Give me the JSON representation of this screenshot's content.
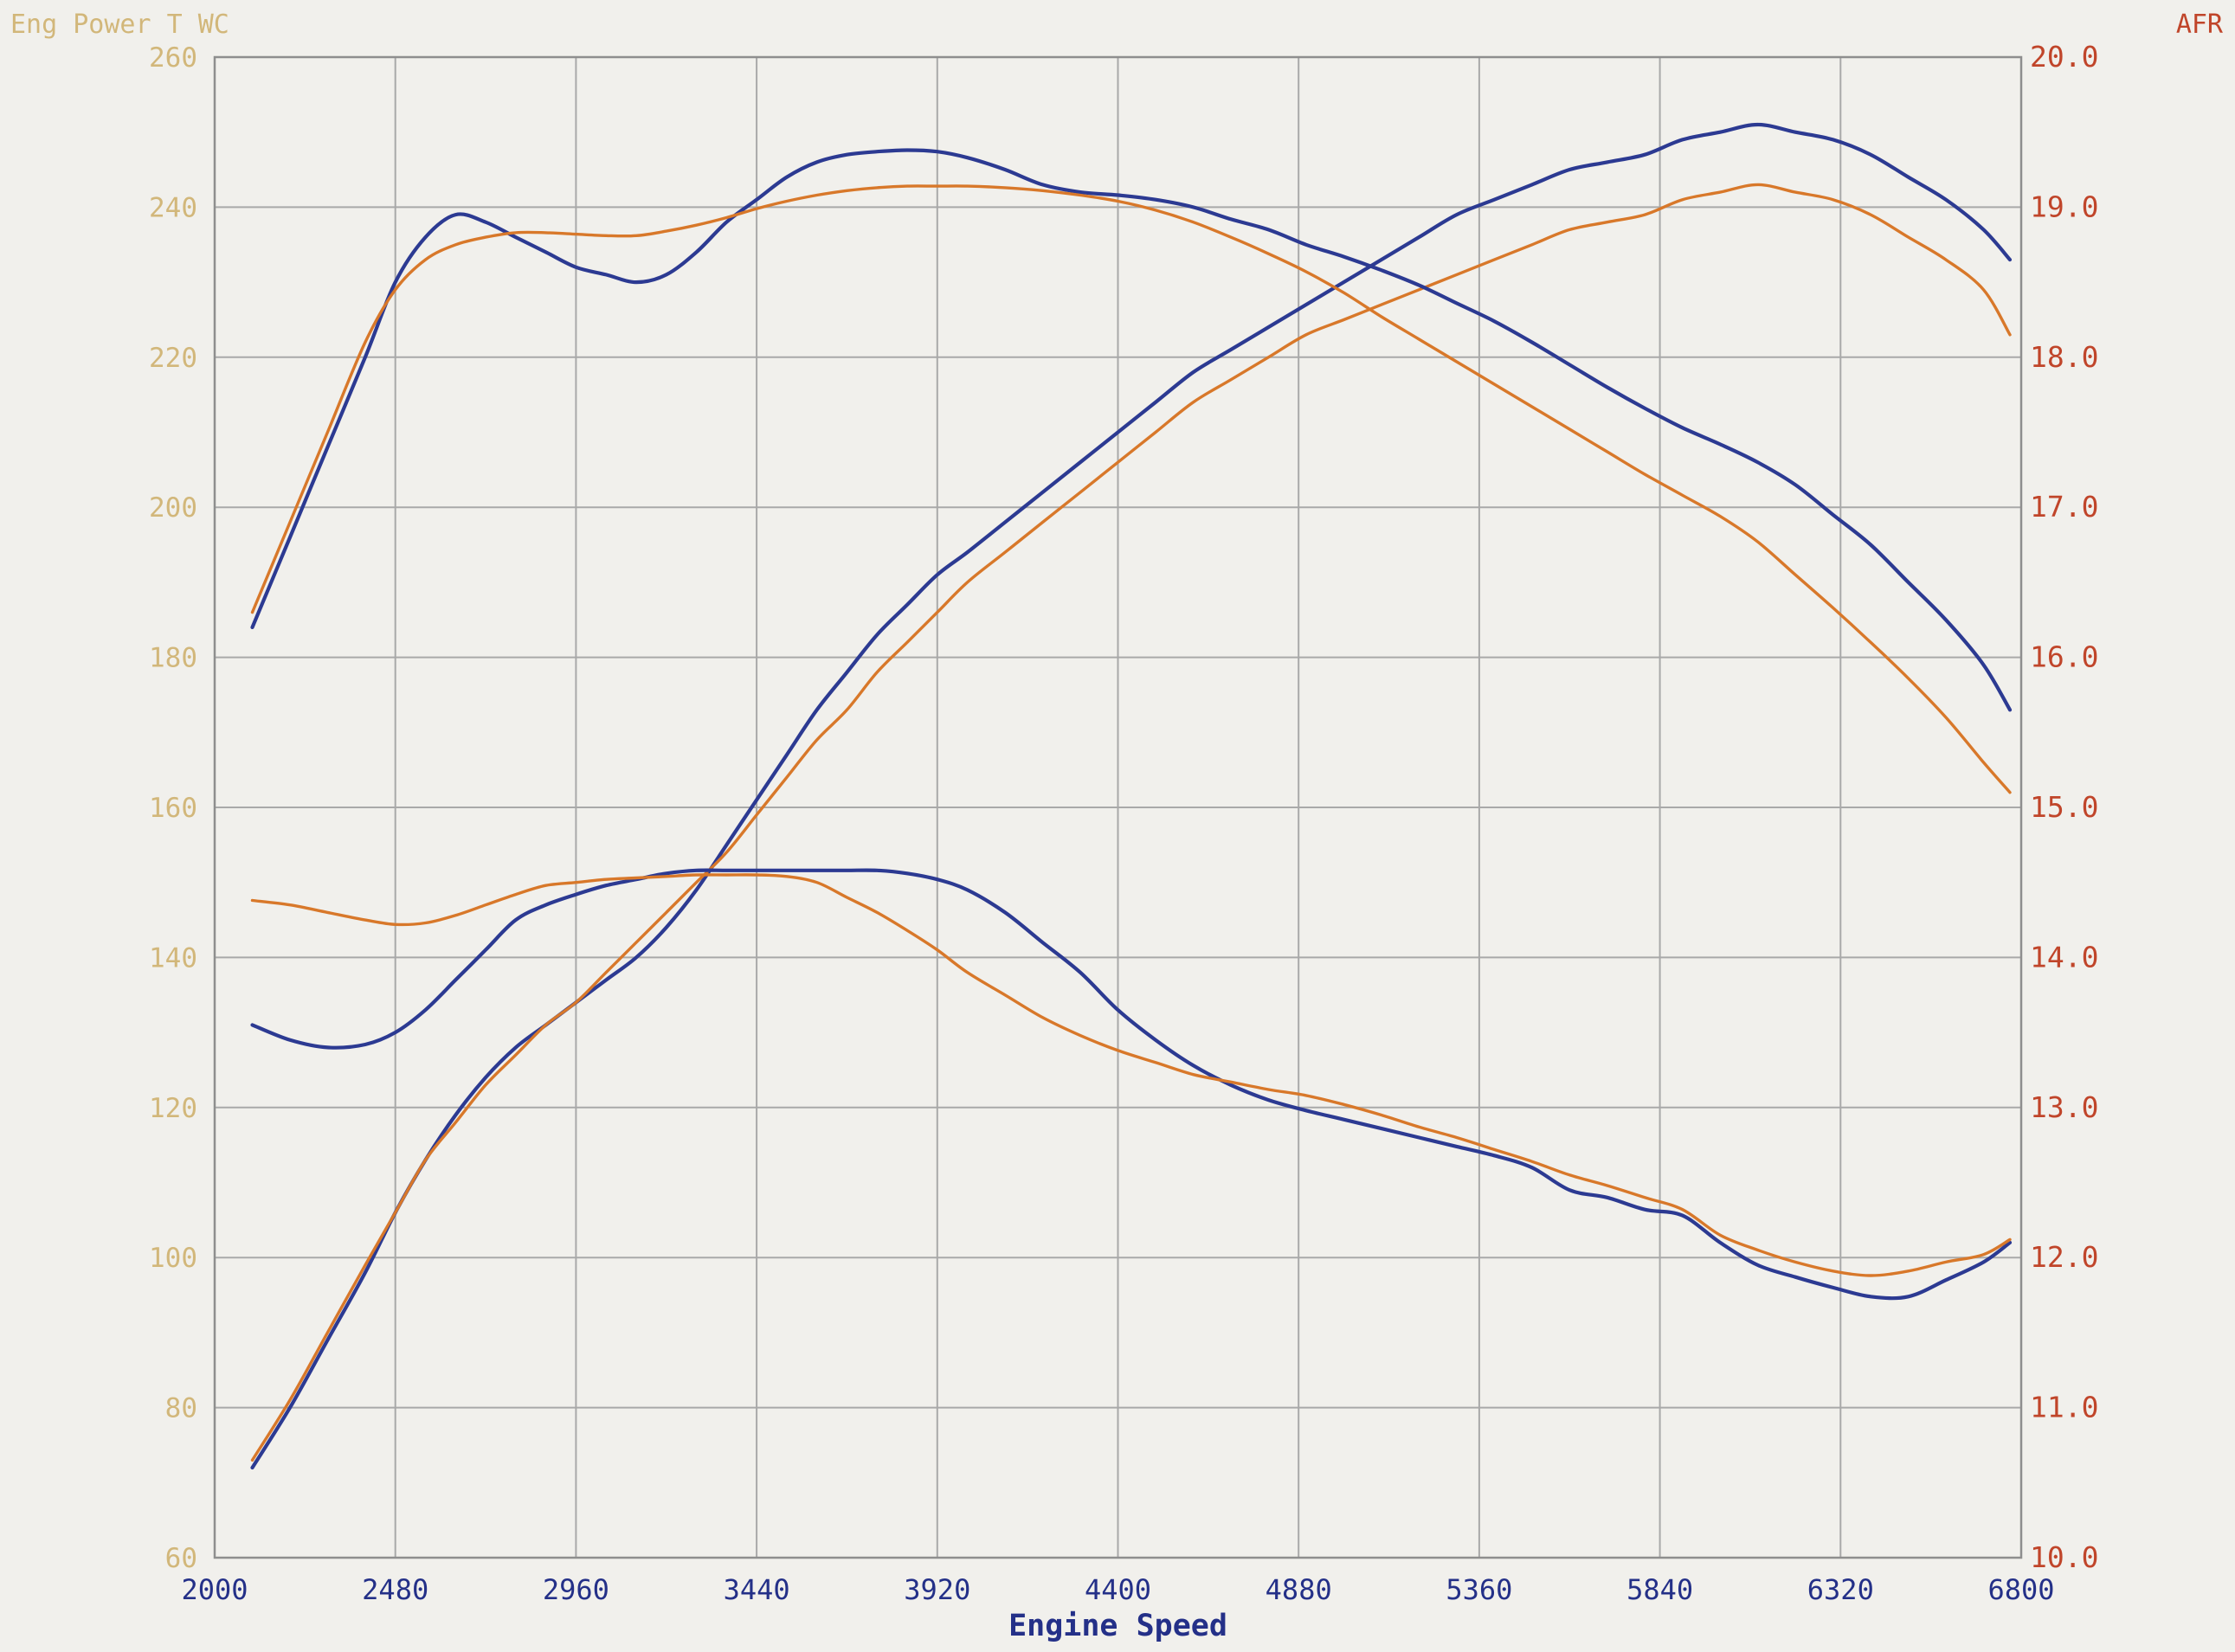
{
  "chart_data": {
    "type": "line",
    "xlabel": "Engine Speed",
    "ylabel_left": "Eng Power T WC",
    "ylabel_right": "AFR",
    "x_ticks": [
      2000,
      2480,
      2960,
      3440,
      3920,
      4400,
      4880,
      5360,
      5840,
      6320,
      6800
    ],
    "y_left_ticks": [
      60,
      80,
      100,
      120,
      140,
      160,
      180,
      200,
      220,
      240,
      260
    ],
    "y_right_ticks": [
      "10.0",
      "11.0",
      "12.0",
      "13.0",
      "14.0",
      "15.0",
      "16.0",
      "17.0",
      "18.0",
      "19.0",
      "20.0"
    ],
    "xlim": [
      2000,
      6800
    ],
    "ylim_left": [
      60,
      260
    ],
    "ylim_right": [
      10.0,
      20.0
    ],
    "grid": true,
    "colors": {
      "blue": "#2c3a92",
      "orange": "#d8782a",
      "left_axis": "#d2b77a",
      "right_axis": "#c0452a",
      "x_axis": "#243088",
      "grid": "#a9a9a9"
    },
    "series": [
      {
        "axis": "left",
        "color": "blue",
        "x": [
          2100,
          2200,
          2300,
          2400,
          2480,
          2560,
          2640,
          2720,
          2800,
          2880,
          2960,
          3040,
          3120,
          3200,
          3280,
          3360,
          3440,
          3520,
          3600,
          3680,
          3760,
          3840,
          3920,
          4000,
          4100,
          4200,
          4300,
          4400,
          4500,
          4600,
          4700,
          4800,
          4900,
          5000,
          5100,
          5200,
          5300,
          5400,
          5500,
          5600,
          5700,
          5800,
          5900,
          6000,
          6100,
          6200,
          6300,
          6400,
          6500,
          6600,
          6700,
          6770
        ],
        "y": [
          72,
          80,
          89,
          98,
          106,
          113,
          119,
          124,
          128,
          131,
          134,
          137,
          140,
          144,
          149,
          155,
          161,
          167,
          173,
          178,
          183,
          187,
          191,
          194,
          198,
          202,
          206,
          210,
          214,
          218,
          221,
          224,
          227,
          230,
          233,
          236,
          239,
          241,
          243,
          245,
          246,
          247,
          249,
          250,
          251,
          250,
          249,
          247,
          244,
          241,
          237,
          233
        ]
      },
      {
        "axis": "left",
        "color": "orange",
        "x": [
          2100,
          2200,
          2300,
          2400,
          2480,
          2560,
          2640,
          2720,
          2800,
          2880,
          2960,
          3040,
          3120,
          3200,
          3280,
          3360,
          3440,
          3520,
          3600,
          3680,
          3760,
          3840,
          3920,
          4000,
          4100,
          4200,
          4300,
          4400,
          4500,
          4600,
          4700,
          4800,
          4900,
          5000,
          5100,
          5200,
          5300,
          5400,
          5500,
          5600,
          5700,
          5800,
          5900,
          6000,
          6100,
          6200,
          6300,
          6400,
          6500,
          6600,
          6700,
          6770
        ],
        "y": [
          73,
          81,
          90,
          99,
          106,
          113,
          118,
          123,
          127,
          131,
          134,
          138,
          142,
          146,
          150,
          154,
          159,
          164,
          169,
          173,
          178,
          182,
          186,
          190,
          194,
          198,
          202,
          206,
          210,
          214,
          217,
          220,
          223,
          225,
          227,
          229,
          231,
          233,
          235,
          237,
          238,
          239,
          241,
          242,
          243,
          242,
          241,
          239,
          236,
          233,
          229,
          223
        ]
      },
      {
        "axis": "right",
        "color": "blue",
        "x": [
          2100,
          2200,
          2300,
          2400,
          2480,
          2560,
          2640,
          2720,
          2800,
          2880,
          2960,
          3040,
          3120,
          3200,
          3280,
          3360,
          3440,
          3520,
          3600,
          3680,
          3760,
          3840,
          3920,
          4000,
          4100,
          4200,
          4300,
          4400,
          4500,
          4600,
          4700,
          4800,
          4900,
          5000,
          5100,
          5200,
          5300,
          5400,
          5500,
          5600,
          5700,
          5800,
          5900,
          6000,
          6100,
          6200,
          6300,
          6400,
          6500,
          6600,
          6700,
          6770
        ],
        "y": [
          16.2,
          16.8,
          17.4,
          18.0,
          18.5,
          18.8,
          18.95,
          18.9,
          18.8,
          18.7,
          18.6,
          18.55,
          18.5,
          18.55,
          18.7,
          18.9,
          19.05,
          19.2,
          19.3,
          19.35,
          19.37,
          19.38,
          19.37,
          19.33,
          19.25,
          19.15,
          19.1,
          19.08,
          19.05,
          19.0,
          18.92,
          18.85,
          18.75,
          18.67,
          18.58,
          18.48,
          18.36,
          18.24,
          18.1,
          17.95,
          17.8,
          17.66,
          17.53,
          17.42,
          17.3,
          17.15,
          16.95,
          16.75,
          16.5,
          16.25,
          15.95,
          15.65
        ]
      },
      {
        "axis": "right",
        "color": "orange",
        "x": [
          2100,
          2200,
          2300,
          2400,
          2480,
          2560,
          2640,
          2720,
          2800,
          2880,
          2960,
          3040,
          3120,
          3200,
          3280,
          3360,
          3440,
          3520,
          3600,
          3680,
          3760,
          3840,
          3920,
          4000,
          4100,
          4200,
          4300,
          4400,
          4500,
          4600,
          4700,
          4800,
          4900,
          5000,
          5100,
          5200,
          5300,
          5400,
          5500,
          5600,
          5700,
          5800,
          5900,
          6000,
          6100,
          6200,
          6300,
          6400,
          6500,
          6600,
          6700,
          6770
        ],
        "y": [
          16.3,
          16.9,
          17.5,
          18.1,
          18.45,
          18.65,
          18.75,
          18.8,
          18.83,
          18.83,
          18.82,
          18.81,
          18.81,
          18.84,
          18.88,
          18.93,
          18.99,
          19.04,
          19.08,
          19.11,
          19.13,
          19.14,
          19.14,
          19.14,
          19.13,
          19.11,
          19.08,
          19.04,
          18.98,
          18.9,
          18.8,
          18.69,
          18.57,
          18.43,
          18.27,
          18.12,
          17.97,
          17.82,
          17.67,
          17.52,
          17.37,
          17.22,
          17.08,
          16.94,
          16.77,
          16.55,
          16.33,
          16.1,
          15.86,
          15.6,
          15.3,
          15.1
        ]
      },
      {
        "axis": "right",
        "color": "blue",
        "x": [
          2100,
          2200,
          2300,
          2400,
          2480,
          2560,
          2640,
          2720,
          2800,
          2880,
          2960,
          3040,
          3120,
          3200,
          3280,
          3360,
          3440,
          3520,
          3600,
          3680,
          3760,
          3840,
          3920,
          4000,
          4100,
          4200,
          4300,
          4400,
          4500,
          4600,
          4700,
          4800,
          4900,
          5000,
          5100,
          5200,
          5300,
          5400,
          5500,
          5600,
          5700,
          5800,
          5900,
          6000,
          6100,
          6200,
          6300,
          6400,
          6500,
          6600,
          6700,
          6770
        ],
        "y": [
          13.55,
          13.45,
          13.4,
          13.42,
          13.5,
          13.65,
          13.85,
          14.05,
          14.25,
          14.35,
          14.42,
          14.48,
          14.52,
          14.56,
          14.58,
          14.58,
          14.58,
          14.58,
          14.58,
          14.58,
          14.58,
          14.56,
          14.52,
          14.45,
          14.3,
          14.1,
          13.9,
          13.65,
          13.45,
          13.28,
          13.15,
          13.05,
          12.98,
          12.92,
          12.86,
          12.8,
          12.74,
          12.68,
          12.6,
          12.45,
          12.4,
          12.32,
          12.28,
          12.1,
          11.95,
          11.87,
          11.8,
          11.74,
          11.74,
          11.85,
          11.97,
          12.1
        ]
      },
      {
        "axis": "right",
        "color": "orange",
        "x": [
          2100,
          2200,
          2300,
          2400,
          2480,
          2560,
          2640,
          2720,
          2800,
          2880,
          2960,
          3040,
          3120,
          3200,
          3280,
          3360,
          3440,
          3520,
          3600,
          3680,
          3760,
          3840,
          3920,
          4000,
          4100,
          4200,
          4300,
          4400,
          4500,
          4600,
          4700,
          4800,
          4900,
          5000,
          5100,
          5200,
          5300,
          5400,
          5500,
          5600,
          5700,
          5800,
          5900,
          6000,
          6100,
          6200,
          6300,
          6400,
          6500,
          6600,
          6700,
          6770
        ],
        "y": [
          14.38,
          14.35,
          14.3,
          14.25,
          14.22,
          14.23,
          14.28,
          14.35,
          14.42,
          14.48,
          14.5,
          14.52,
          14.53,
          14.54,
          14.55,
          14.55,
          14.55,
          14.54,
          14.5,
          14.4,
          14.3,
          14.18,
          14.05,
          13.9,
          13.75,
          13.6,
          13.48,
          13.38,
          13.3,
          13.22,
          13.17,
          13.12,
          13.08,
          13.02,
          12.95,
          12.87,
          12.8,
          12.72,
          12.64,
          12.55,
          12.48,
          12.4,
          12.32,
          12.15,
          12.05,
          11.97,
          11.91,
          11.88,
          11.91,
          11.97,
          12.02,
          12.12
        ]
      }
    ]
  }
}
